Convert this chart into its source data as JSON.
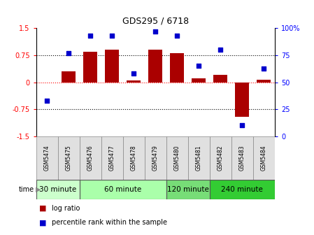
{
  "title": "GDS295 / 6718",
  "samples": [
    "GSM5474",
    "GSM5475",
    "GSM5476",
    "GSM5477",
    "GSM5478",
    "GSM5479",
    "GSM5480",
    "GSM5481",
    "GSM5482",
    "GSM5483",
    "GSM5484"
  ],
  "log_ratio": [
    0.0,
    0.3,
    0.85,
    0.9,
    0.05,
    0.9,
    0.8,
    0.1,
    0.2,
    -0.95,
    0.07
  ],
  "percentile": [
    33,
    77,
    93,
    93,
    58,
    97,
    93,
    65,
    80,
    10,
    63
  ],
  "groups": [
    {
      "label": "30 minute",
      "start": 0,
      "end": 1,
      "color": "#ccffcc"
    },
    {
      "label": "60 minute",
      "start": 2,
      "end": 5,
      "color": "#aaffaa"
    },
    {
      "label": "120 minute",
      "start": 6,
      "end": 7,
      "color": "#77dd77"
    },
    {
      "label": "240 minute",
      "start": 8,
      "end": 10,
      "color": "#33cc33"
    }
  ],
  "bar_color": "#aa0000",
  "dot_color": "#0000cc",
  "ylim": [
    -1.5,
    1.5
  ],
  "y2lim": [
    0,
    100
  ],
  "yticks": [
    -1.5,
    -0.75,
    0,
    0.75,
    1.5
  ],
  "ytick_labels": [
    "-1.5",
    "-0.75",
    "0",
    "0.75",
    "1.5"
  ],
  "y2ticks": [
    0,
    25,
    50,
    75,
    100
  ],
  "y2tick_labels": [
    "0",
    "25",
    "50",
    "75",
    "100%"
  ],
  "time_label": "time",
  "legend_bar_label": "log ratio",
  "legend_dot_label": "percentile rank within the sample",
  "plot_bg": "#ffffff",
  "sample_bg": "#e0e0e0",
  "title_fontsize": 9,
  "tick_fontsize": 7,
  "label_fontsize": 7,
  "sample_fontsize": 5.5,
  "group_fontsize": 7.5
}
